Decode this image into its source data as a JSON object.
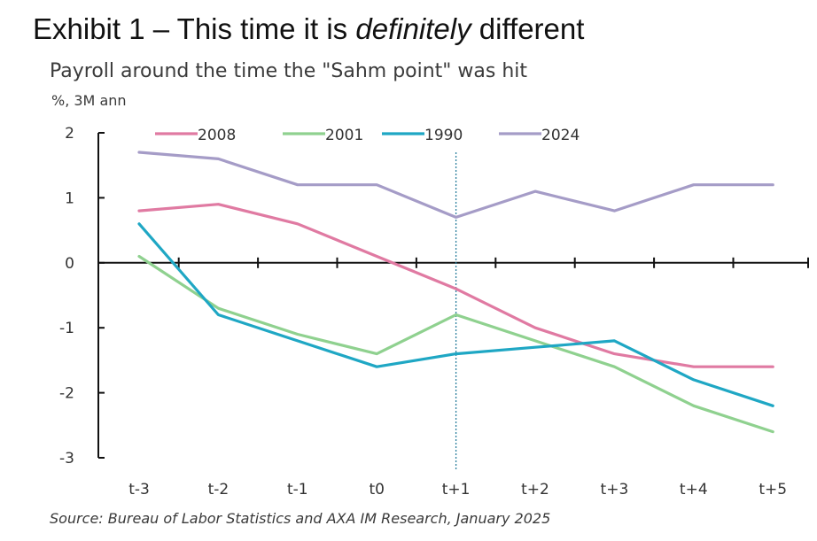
{
  "header": {
    "exhibit_prefix": "Exhibit 1 – This time it is ",
    "exhibit_emphasis": "definitely",
    "exhibit_suffix": " different"
  },
  "chart_data": {
    "type": "line",
    "title": "Payroll around the time the \"Sahm point\" was hit",
    "ylabel": "%, 3M ann",
    "xlabel": "",
    "categories": [
      "t-3",
      "t-2",
      "t-1",
      "t0",
      "t+1",
      "t+2",
      "t+3",
      "t+4",
      "t+5"
    ],
    "ylim": [
      -3,
      2
    ],
    "yticks": [
      2,
      1,
      0,
      -1,
      -2,
      -3
    ],
    "reference_line_at": "t+1",
    "legend_position": "top",
    "grid": false,
    "series": [
      {
        "name": "2008",
        "color": "#e07aa2",
        "values": [
          0.8,
          0.9,
          0.6,
          0.1,
          -0.4,
          -1.0,
          -1.4,
          -1.6,
          -1.6
        ]
      },
      {
        "name": "2001",
        "color": "#8fd18f",
        "values": [
          0.1,
          -0.7,
          -1.1,
          -1.4,
          -0.8,
          -1.2,
          -1.6,
          -2.2,
          -2.6
        ]
      },
      {
        "name": "1990",
        "color": "#1fa7c4",
        "values": [
          0.6,
          -0.8,
          -1.2,
          -1.6,
          -1.4,
          -1.3,
          -1.2,
          -1.8,
          -2.2
        ]
      },
      {
        "name": "2024",
        "color": "#a59cc7",
        "values": [
          1.7,
          1.6,
          1.2,
          1.2,
          0.7,
          1.1,
          0.8,
          1.2,
          1.2
        ]
      }
    ]
  },
  "source": "Source: Bureau of Labor Statistics and AXA IM Research, January  2025"
}
